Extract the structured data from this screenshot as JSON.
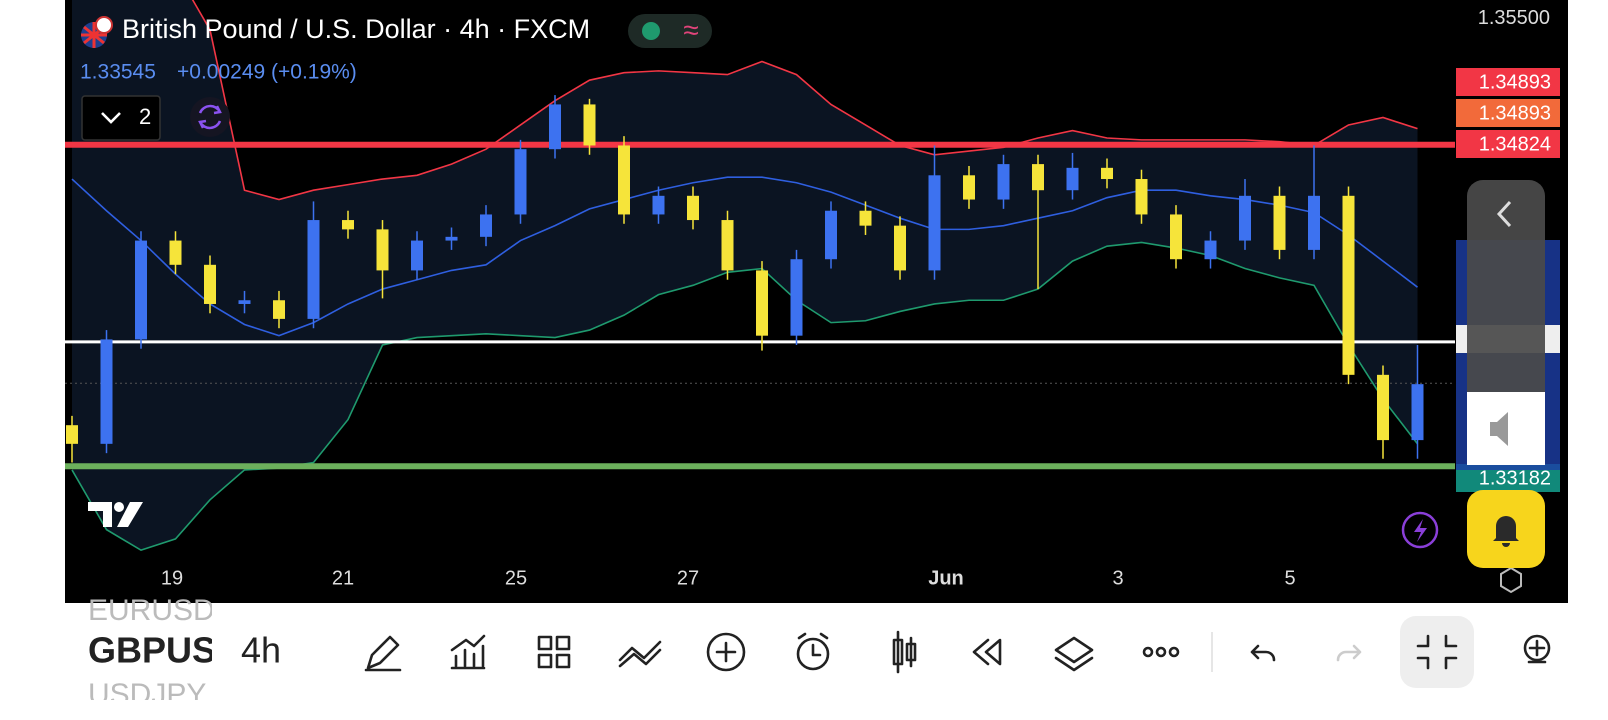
{
  "header": {
    "title": "British Pound / U.S. Dollar · 4h · FXCM",
    "price": "1.33545",
    "change": "+0.00249 (+0.19%)",
    "indicator_count": "2"
  },
  "chart_data": {
    "type": "candlestick",
    "xticks": [
      "19",
      "21",
      "25",
      "27",
      "Jun",
      "3",
      "5"
    ],
    "ylim": [
      1.3264,
      1.356
    ],
    "yticks": [
      {
        "value": 1.355,
        "label": "1.35500"
      }
    ],
    "up_color": "#3d72f0",
    "down_color": "#f6e43a",
    "candles": {
      "open": [
        1.3332,
        1.3322,
        1.3378,
        1.3431,
        1.3418,
        1.3397,
        1.3399,
        1.3389,
        1.3442,
        1.3437,
        1.3415,
        1.3431,
        1.3433,
        1.3445,
        1.348,
        1.3504,
        1.3482,
        1.3445,
        1.3455,
        1.3442,
        1.3415,
        1.338,
        1.3421,
        1.3447,
        1.3439,
        1.3415,
        1.3466,
        1.3453,
        1.3472,
        1.3458,
        1.347,
        1.3464,
        1.3445,
        1.3421,
        1.3431,
        1.3455,
        1.3426,
        1.3455,
        1.3359,
        1.3324
      ],
      "high": [
        1.3337,
        1.3383,
        1.3436,
        1.3436,
        1.3423,
        1.3404,
        1.3404,
        1.3452,
        1.3447,
        1.3442,
        1.3436,
        1.3438,
        1.345,
        1.3485,
        1.3509,
        1.3507,
        1.3487,
        1.346,
        1.346,
        1.3447,
        1.342,
        1.3426,
        1.3452,
        1.3452,
        1.3444,
        1.3482,
        1.3471,
        1.3477,
        1.3477,
        1.3478,
        1.3475,
        1.3469,
        1.345,
        1.3436,
        1.3464,
        1.346,
        1.3482,
        1.346,
        1.3364,
        1.3375
      ],
      "low": [
        1.3312,
        1.3317,
        1.3373,
        1.3413,
        1.3392,
        1.3392,
        1.3384,
        1.3384,
        1.3432,
        1.34,
        1.341,
        1.3426,
        1.3428,
        1.344,
        1.3475,
        1.3477,
        1.344,
        1.344,
        1.3437,
        1.341,
        1.3372,
        1.3375,
        1.3416,
        1.3434,
        1.341,
        1.341,
        1.3448,
        1.3448,
        1.3405,
        1.3453,
        1.3459,
        1.344,
        1.3416,
        1.3416,
        1.3426,
        1.3421,
        1.3421,
        1.3354,
        1.3314,
        1.3314
      ],
      "close": [
        1.3322,
        1.3378,
        1.3431,
        1.3418,
        1.3397,
        1.3399,
        1.3389,
        1.3442,
        1.3437,
        1.3415,
        1.3431,
        1.3433,
        1.3445,
        1.348,
        1.3504,
        1.3482,
        1.3445,
        1.3455,
        1.3442,
        1.3415,
        1.338,
        1.3421,
        1.3447,
        1.3439,
        1.3415,
        1.3466,
        1.3453,
        1.3472,
        1.3458,
        1.347,
        1.3464,
        1.3445,
        1.3421,
        1.3431,
        1.3455,
        1.3426,
        1.3455,
        1.3359,
        1.3324,
        1.3354
      ]
    },
    "bollinger": {
      "upper_color": "#f23645",
      "middle_color": "#2f5fe0",
      "lower_color": "#1f9a6e",
      "fill": "#0b1422",
      "upper": [
        1.3614,
        1.3603,
        1.3592,
        1.3576,
        1.3544,
        1.3458,
        1.3453,
        1.3458,
        1.3461,
        1.3464,
        1.3466,
        1.3472,
        1.348,
        1.3493,
        1.3506,
        1.3517,
        1.3521,
        1.3522,
        1.3521,
        1.352,
        1.3527,
        1.352,
        1.3504,
        1.3493,
        1.3482,
        1.3477,
        1.3479,
        1.3481,
        1.3486,
        1.349,
        1.3486,
        1.3485,
        1.3485,
        1.3485,
        1.3485,
        1.3484,
        1.3482,
        1.3493,
        1.3497,
        1.3491
      ],
      "middle": [
        1.3464,
        1.3447,
        1.3431,
        1.3413,
        1.3397,
        1.3386,
        1.338,
        1.3387,
        1.3397,
        1.3405,
        1.341,
        1.3415,
        1.3418,
        1.3431,
        1.3439,
        1.3448,
        1.3453,
        1.3458,
        1.3462,
        1.3465,
        1.3465,
        1.3462,
        1.3457,
        1.345,
        1.3443,
        1.3437,
        1.3437,
        1.3439,
        1.3443,
        1.3447,
        1.3454,
        1.3458,
        1.3458,
        1.3455,
        1.3453,
        1.345,
        1.3446,
        1.3434,
        1.342,
        1.3406
      ],
      "lower": [
        1.3308,
        1.3276,
        1.3265,
        1.3271,
        1.3292,
        1.3308,
        1.3309,
        1.3312,
        1.3335,
        1.3375,
        1.3379,
        1.338,
        1.3381,
        1.338,
        1.3379,
        1.3383,
        1.3391,
        1.3402,
        1.3407,
        1.3414,
        1.3416,
        1.3399,
        1.3387,
        1.3388,
        1.3393,
        1.3397,
        1.3399,
        1.3399,
        1.3405,
        1.342,
        1.3428,
        1.343,
        1.3427,
        1.3423,
        1.3416,
        1.3411,
        1.3407,
        1.3375,
        1.3346,
        1.3322
      ]
    },
    "levels": [
      {
        "value": 1.34824,
        "color": "#f23645"
      },
      {
        "value": 1.33767,
        "color": "#ffffff"
      },
      {
        "value": 1.331,
        "color": "#6cb05c"
      }
    ],
    "last_price": 1.33545,
    "price_labels": [
      {
        "label": "1.34893",
        "color": "#f23645"
      },
      {
        "label": "1.34893",
        "color": "#f26a3a"
      },
      {
        "label": "1.34824",
        "color": "#f23645"
      },
      {
        "label": "1.33182",
        "color": "#11897a"
      }
    ]
  },
  "toolbar": {
    "symbols": [
      "EURUSD",
      "GBPUSD",
      "USDJPY"
    ],
    "interval": "4h"
  }
}
